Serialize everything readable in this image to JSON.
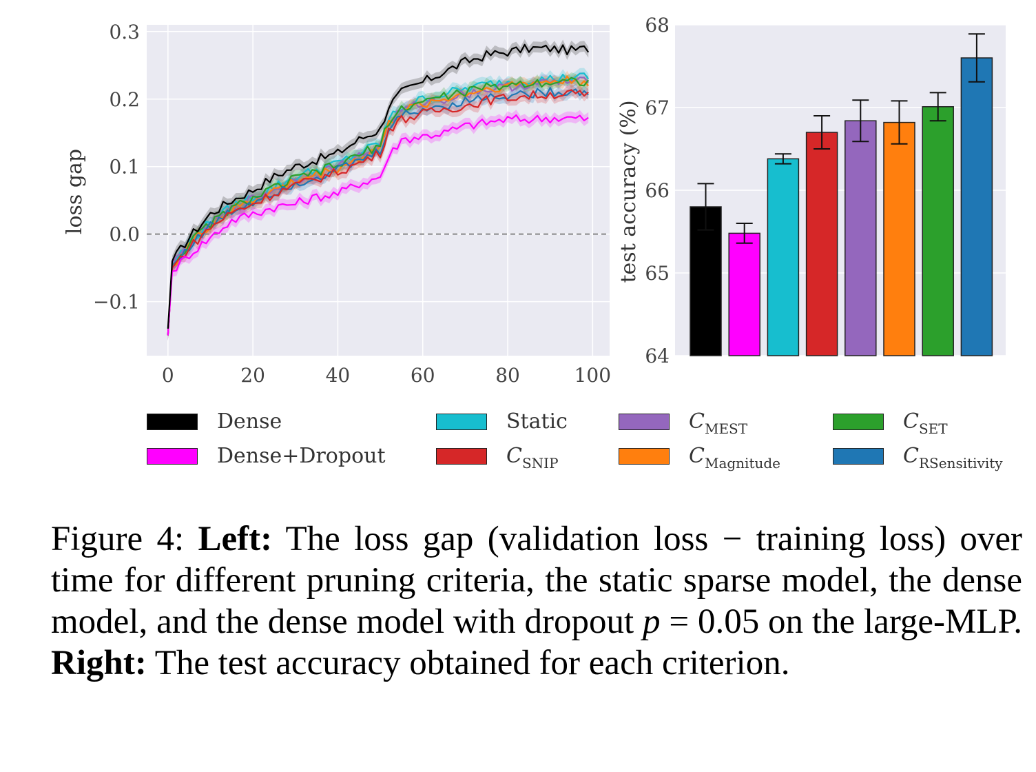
{
  "chart_data": [
    {
      "type": "line",
      "xlabel": "",
      "ylabel": "loss gap",
      "xlim": [
        -5,
        104
      ],
      "ylim": [
        -0.18,
        0.31
      ],
      "xticks": [
        "0",
        "20",
        "40",
        "60",
        "80",
        "100"
      ],
      "yticks": [
        "−0.1",
        "0.0",
        "0.1",
        "0.2",
        "0.3"
      ],
      "reference_line": {
        "y": 0.0,
        "style": "dashed"
      },
      "grid": true,
      "x": [
        0,
        1,
        5,
        10,
        15,
        20,
        25,
        30,
        35,
        40,
        45,
        50,
        52,
        55,
        60,
        65,
        70,
        75,
        80,
        85,
        90,
        95,
        99
      ],
      "series": [
        {
          "name": "Dense",
          "color": "#000000",
          "values": [
            -0.14,
            -0.04,
            -0.005,
            0.03,
            0.05,
            0.065,
            0.085,
            0.1,
            0.11,
            0.12,
            0.14,
            0.155,
            0.19,
            0.21,
            0.225,
            0.24,
            0.255,
            0.265,
            0.27,
            0.275,
            0.275,
            0.272,
            0.275
          ]
        },
        {
          "name": "Dense+Dropout",
          "color": "#ff00ff",
          "values": [
            -0.15,
            -0.055,
            -0.03,
            -0.005,
            0.02,
            0.03,
            0.04,
            0.045,
            0.055,
            0.06,
            0.075,
            0.085,
            0.115,
            0.14,
            0.145,
            0.15,
            0.16,
            0.165,
            0.17,
            0.17,
            0.172,
            0.172,
            0.17
          ]
        },
        {
          "name": "Static",
          "color": "#17becf",
          "values": [
            -0.15,
            -0.045,
            -0.012,
            0.018,
            0.04,
            0.055,
            0.07,
            0.085,
            0.095,
            0.105,
            0.12,
            0.135,
            0.17,
            0.188,
            0.2,
            0.208,
            0.215,
            0.222,
            0.226,
            0.228,
            0.23,
            0.232,
            0.233
          ]
        },
        {
          "name": "C_SNIP",
          "color": "#d62728",
          "values": [
            -0.15,
            -0.05,
            -0.02,
            0.01,
            0.032,
            0.045,
            0.06,
            0.072,
            0.082,
            0.092,
            0.105,
            0.12,
            0.155,
            0.17,
            0.178,
            0.185,
            0.19,
            0.198,
            0.202,
            0.205,
            0.207,
            0.208,
            0.205
          ]
        },
        {
          "name": "C_MEST",
          "color": "#9467bd",
          "values": [
            -0.15,
            -0.045,
            -0.015,
            0.015,
            0.037,
            0.052,
            0.066,
            0.08,
            0.09,
            0.1,
            0.115,
            0.13,
            0.165,
            0.182,
            0.195,
            0.2,
            0.208,
            0.214,
            0.218,
            0.222,
            0.224,
            0.226,
            0.225
          ]
        },
        {
          "name": "C_Magnitude",
          "color": "#ff7f0e",
          "values": [
            -0.15,
            -0.047,
            -0.016,
            0.014,
            0.036,
            0.05,
            0.065,
            0.078,
            0.088,
            0.098,
            0.112,
            0.128,
            0.163,
            0.18,
            0.193,
            0.2,
            0.208,
            0.215,
            0.22,
            0.224,
            0.226,
            0.228,
            0.226
          ]
        },
        {
          "name": "C_SET",
          "color": "#2ca02c",
          "values": [
            -0.15,
            -0.046,
            -0.014,
            0.016,
            0.038,
            0.053,
            0.068,
            0.082,
            0.092,
            0.102,
            0.117,
            0.132,
            0.168,
            0.185,
            0.197,
            0.204,
            0.211,
            0.217,
            0.221,
            0.224,
            0.226,
            0.227,
            0.226
          ]
        },
        {
          "name": "C_RSensitivity",
          "color": "#1f77b4",
          "values": [
            -0.15,
            -0.048,
            -0.018,
            0.012,
            0.034,
            0.048,
            0.063,
            0.075,
            0.085,
            0.095,
            0.108,
            0.123,
            0.158,
            0.175,
            0.185,
            0.19,
            0.197,
            0.203,
            0.206,
            0.208,
            0.21,
            0.212,
            0.21
          ]
        }
      ]
    },
    {
      "type": "bar",
      "xlabel": "",
      "ylabel": "test accuracy (%)",
      "ylim": [
        64,
        68
      ],
      "yticks": [
        "64",
        "65",
        "66",
        "67",
        "68"
      ],
      "categories": [
        "Dense",
        "Dense+Dropout",
        "Static",
        "C_SNIP",
        "C_MEST",
        "C_Magnitude",
        "C_SET",
        "C_RSensitivity"
      ],
      "colors": [
        "#000000",
        "#ff00ff",
        "#17becf",
        "#d62728",
        "#9467bd",
        "#ff7f0e",
        "#2ca02c",
        "#1f77b4"
      ],
      "values": [
        65.8,
        65.48,
        66.38,
        66.7,
        66.84,
        66.82,
        67.01,
        67.6
      ],
      "errors": [
        0.28,
        0.12,
        0.06,
        0.2,
        0.25,
        0.26,
        0.17,
        0.29
      ]
    }
  ],
  "legend": {
    "items": [
      {
        "label": "Dense",
        "color": "#000000"
      },
      {
        "label": "Dense+Dropout",
        "color": "#ff00ff"
      },
      {
        "label": "Static",
        "color": "#17becf"
      },
      {
        "label": "C",
        "sub": "SNIP",
        "color": "#d62728"
      },
      {
        "label": "C",
        "sub": "MEST",
        "color": "#9467bd"
      },
      {
        "label": "C",
        "sub": "Magnitude",
        "color": "#ff7f0e"
      },
      {
        "label": "C",
        "sub": "SET",
        "color": "#2ca02c"
      },
      {
        "label": "C",
        "sub": "RSensitivity",
        "color": "#1f77b4"
      }
    ]
  },
  "caption": {
    "figure_label": "Figure 4:",
    "left_label": "Left:",
    "left_text_1": "The loss gap (validation loss − training loss) over time for different pruning criteria, the static sparse model, the dense model, and the dense model with dropout",
    "p_symbol": "p",
    "p_value": "= 0.05",
    "left_text_2": "on the large-MLP.",
    "right_label": "Right:",
    "right_text": "The test accuracy obtained for each criterion."
  }
}
